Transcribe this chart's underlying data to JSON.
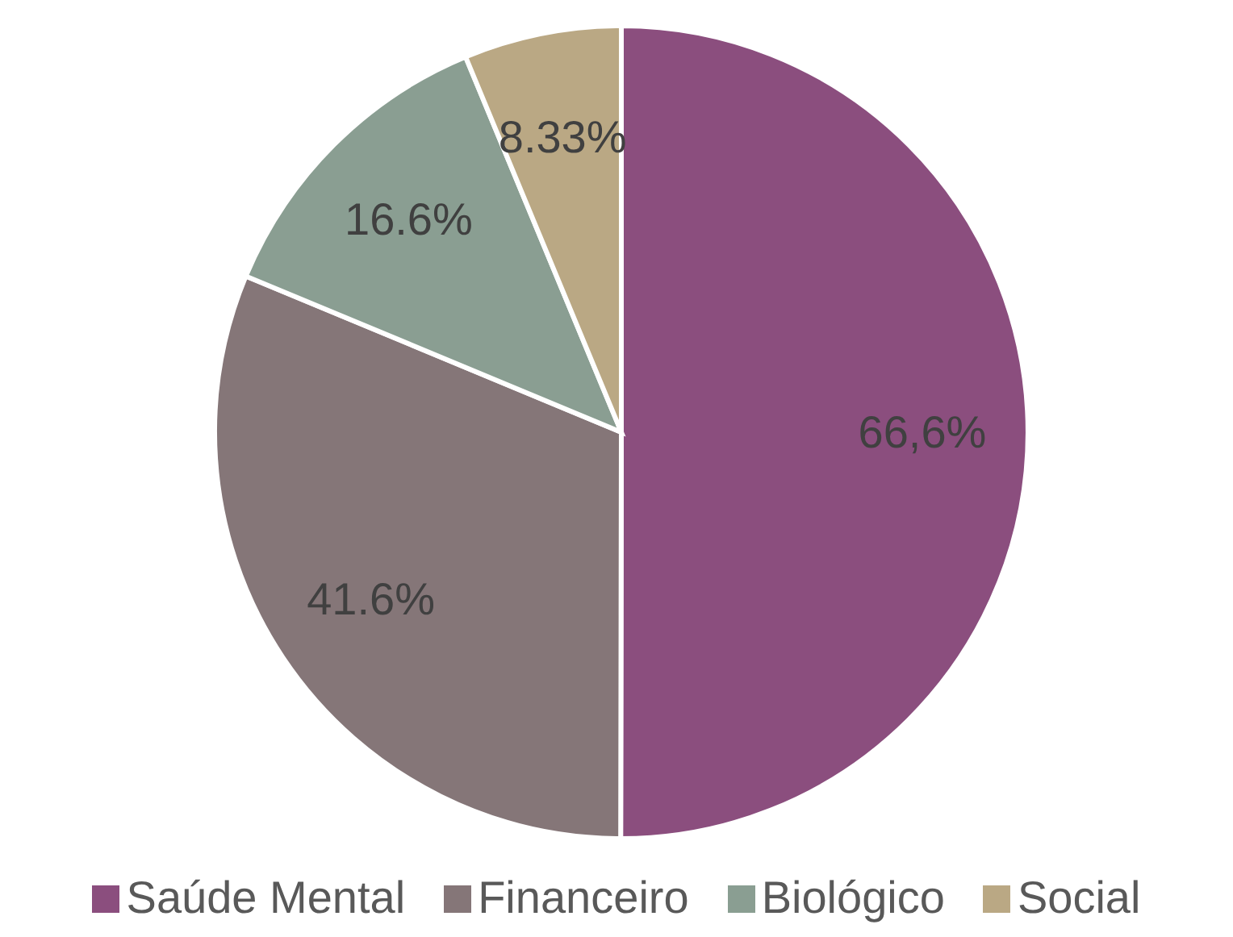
{
  "chart_data": {
    "type": "pie",
    "categories": [
      "Saúde Mental",
      "Financeiro",
      "Biológico",
      "Social"
    ],
    "values": [
      66.6,
      41.6,
      16.6,
      8.33
    ],
    "value_labels": [
      "66,6%",
      "41.6%",
      "16.6%",
      "8.33%"
    ],
    "colors": [
      "#8b4e7e",
      "#857678",
      "#8a9e92",
      "#baa884"
    ],
    "legend": "bottom"
  }
}
